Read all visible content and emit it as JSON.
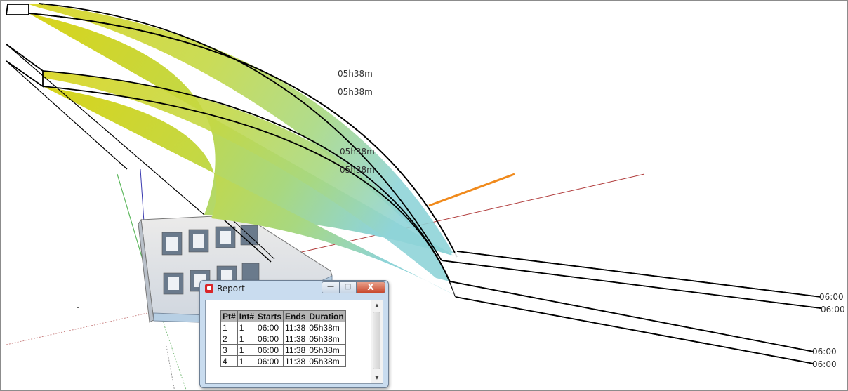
{
  "viewport": {
    "labels": {
      "duration_1": "05h38m",
      "duration_2": "05h38m",
      "duration_3": "05h38m",
      "duration_4": "05h38m",
      "start_1": "06:00",
      "start_2": "06:00",
      "start_3": "06:00",
      "start_4": "06:00"
    },
    "colors": {
      "sun_path_gradient_start": "#d8d41a",
      "sun_path_gradient_end": "#8fd4d8",
      "red_axis": "#b03a3a",
      "green_axis": "#3faa3f",
      "blue_axis": "#3a3ab0",
      "orange_ray": "#f08a1c"
    }
  },
  "report": {
    "title": "Report",
    "buttons": {
      "minimize": "—",
      "maximize": "□",
      "close": "X"
    },
    "columns": [
      "Pt#",
      "Int#",
      "Starts",
      "Ends",
      "Duration"
    ],
    "rows": [
      [
        "1",
        "1",
        "06:00",
        "11:38",
        "05h38m"
      ],
      [
        "2",
        "1",
        "06:00",
        "11:38",
        "05h38m"
      ],
      [
        "3",
        "1",
        "06:00",
        "11:38",
        "05h38m"
      ],
      [
        "4",
        "1",
        "06:00",
        "11:38",
        "05h38m"
      ]
    ]
  }
}
